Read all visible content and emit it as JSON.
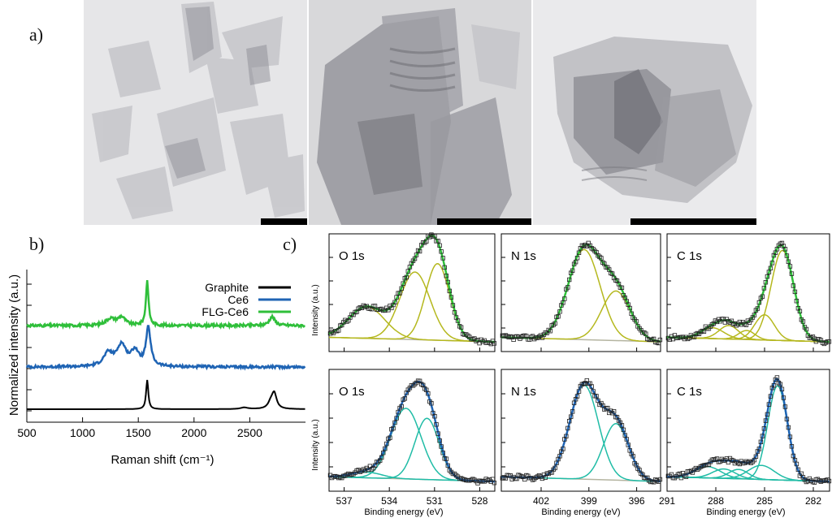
{
  "panels": {
    "a": "a)",
    "b": "b)",
    "c": "c)"
  },
  "colors": {
    "graphite": "#000000",
    "ce6": "#1f64b4",
    "flg": "#2fbf3a",
    "olive": "#b5b81e",
    "teal": "#20bca6",
    "baseline": "#b4b4a0",
    "fit_blue": "#1f64b4",
    "fit_green": "#2fbf3a"
  },
  "raman": {
    "chart_data": {
      "type": "line",
      "xlabel": "Raman shift (cm⁻¹)",
      "ylabel": "Normalized intensity (a.u.)",
      "xlim": [
        500,
        3000
      ],
      "xticks": [
        500,
        1000,
        1500,
        2000,
        2500
      ],
      "legend_position": "top-right",
      "series": [
        {
          "name": "Graphite",
          "color": "#000000",
          "peaks": [
            [
              1580,
              0.9,
              12
            ],
            [
              2450,
              0.05,
              40
            ],
            [
              2690,
              0.2,
              30
            ],
            [
              2720,
              0.45,
              25
            ]
          ]
        },
        {
          "name": "Ce6",
          "color": "#1f64b4",
          "peaks": [
            [
              1230,
              0.3,
              50
            ],
            [
              1350,
              0.5,
              50
            ],
            [
              1470,
              0.35,
              40
            ],
            [
              1590,
              0.9,
              25
            ]
          ]
        },
        {
          "name": "FLG-Ce6",
          "color": "#2fbf3a",
          "peaks": [
            [
              1250,
              0.15,
              50
            ],
            [
              1350,
              0.18,
              40
            ],
            [
              1580,
              1.0,
              14
            ],
            [
              2700,
              0.2,
              30
            ]
          ]
        }
      ]
    }
  },
  "xps": {
    "ylabel": "Intensity (a.u.)",
    "xlabel": "Binding energy (eV)",
    "chart_data": [
      {
        "label": "O 1s",
        "xlim": [
          538,
          527
        ],
        "xticks": [
          537,
          534,
          531,
          528
        ],
        "fit": "green",
        "comp": "olive",
        "peaks": [
          [
            535.5,
            0.35,
            1.2
          ],
          [
            532.3,
            0.75,
            1.0
          ],
          [
            530.8,
            0.85,
            0.8
          ]
        ]
      },
      {
        "label": "N 1s",
        "xlim": [
          404.5,
          394.5
        ],
        "xticks": [
          402,
          399,
          396
        ],
        "fit": "green",
        "comp": "olive",
        "peaks": [
          [
            399.3,
            1.0,
            1.0
          ],
          [
            397.3,
            0.55,
            0.9
          ]
        ]
      },
      {
        "label": "C 1s",
        "xlim": [
          291,
          281
        ],
        "xticks": [
          291,
          288,
          285,
          282
        ],
        "fit": "green",
        "comp": "olive",
        "peaks": [
          [
            288.2,
            0.12,
            0.7
          ],
          [
            287.2,
            0.15,
            0.6
          ],
          [
            286.1,
            0.1,
            0.5
          ],
          [
            285.0,
            0.28,
            0.6
          ],
          [
            283.9,
            1.0,
            0.7
          ]
        ]
      },
      {
        "label": "O 1s",
        "xlim": [
          538,
          527
        ],
        "xticks": [
          537,
          534,
          531,
          528
        ],
        "fit": "blue",
        "comp": "teal",
        "peaks": [
          [
            535.5,
            0.06,
            1.0
          ],
          [
            532.9,
            0.75,
            1.0
          ],
          [
            531.5,
            0.65,
            0.8
          ]
        ]
      },
      {
        "label": "N 1s",
        "xlim": [
          404.5,
          394.5
        ],
        "xticks": [
          402,
          399,
          396
        ],
        "fit": "blue",
        "comp": "teal",
        "peaks": [
          [
            399.3,
            1.0,
            0.9
          ],
          [
            397.3,
            0.6,
            0.8
          ]
        ]
      },
      {
        "label": "C 1s",
        "xlim": [
          291,
          281
        ],
        "xticks": [
          291,
          288,
          285,
          282
        ],
        "fit": "blue",
        "comp": "teal",
        "peaks": [
          [
            288.5,
            0.12,
            0.8
          ],
          [
            287.5,
            0.1,
            0.7
          ],
          [
            286.6,
            0.1,
            0.6
          ],
          [
            285.2,
            0.15,
            0.8
          ],
          [
            284.2,
            1.0,
            0.6
          ]
        ]
      }
    ]
  }
}
